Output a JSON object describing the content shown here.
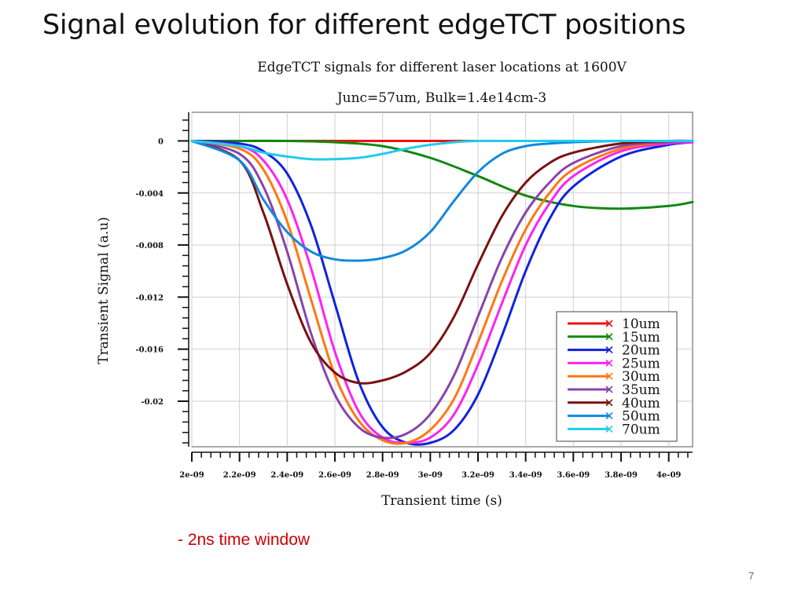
{
  "slide": {
    "title": "Signal evolution for different edgeTCT positions",
    "note": "- 2ns time window",
    "page_number": "7"
  },
  "chart_data": {
    "type": "line",
    "title": "EdgeTCT signals for different laser locations at 1600V",
    "subtitle": "Junc=57um, Bulk=1.4e14cm-3",
    "xlabel": "Transient time (s)",
    "ylabel": "Transient Signal (a.u)",
    "xlim": [
      2e-09,
      4.1e-09
    ],
    "ylim": [
      -0.0235,
      0.0022
    ],
    "x_ticks": [
      2e-09,
      2.2e-09,
      2.4e-09,
      2.6e-09,
      2.8e-09,
      3e-09,
      3.2e-09,
      3.4e-09,
      3.6e-09,
      3.8e-09,
      4e-09
    ],
    "x_tick_labels": [
      "2e-09",
      "2.2e-09",
      "2.4e-09",
      "2.6e-09",
      "2.8e-09",
      "3e-09",
      "3.2e-09",
      "3.4e-09",
      "3.6e-09",
      "3.8e-09",
      "4e-09"
    ],
    "y_ticks": [
      0,
      -0.004,
      -0.008,
      -0.012,
      -0.016,
      -0.02
    ],
    "y_tick_labels": [
      "0",
      "-0.004",
      "-0.008",
      "-0.012",
      "-0.016",
      "-0.02"
    ],
    "grid": true,
    "legend_position": "bottom-right",
    "series": [
      {
        "name": "10um",
        "color": "#ee1111",
        "x": [
          2e-09,
          3e-09,
          3.45e-09
        ],
        "y": [
          0,
          0,
          0
        ]
      },
      {
        "name": "15um",
        "color": "#118811",
        "x": [
          2e-09,
          2.2e-09,
          2.4e-09,
          2.6e-09,
          2.8e-09,
          3e-09,
          3.2e-09,
          3.4e-09,
          3.6e-09,
          3.8e-09,
          4e-09,
          4.1e-09
        ],
        "y": [
          0,
          0,
          0,
          -0.0001,
          -0.0004,
          -0.0013,
          -0.0027,
          -0.0042,
          -0.005,
          -0.0052,
          -0.005,
          -0.0047
        ]
      },
      {
        "name": "20um",
        "color": "#1122dd",
        "x": [
          2e-09,
          2.2e-09,
          2.3e-09,
          2.4e-09,
          2.5e-09,
          2.6e-09,
          2.7e-09,
          2.8e-09,
          2.9e-09,
          3e-09,
          3.1e-09,
          3.2e-09,
          3.3e-09,
          3.4e-09,
          3.5e-09,
          3.6e-09,
          3.8e-09,
          4e-09,
          4.1e-09
        ],
        "y": [
          0,
          -0.0002,
          -0.0008,
          -0.0025,
          -0.0065,
          -0.0125,
          -0.0185,
          -0.022,
          -0.0232,
          -0.0232,
          -0.0222,
          -0.0195,
          -0.015,
          -0.01,
          -0.006,
          -0.0035,
          -0.0012,
          -0.0003,
          -0.0001
        ]
      },
      {
        "name": "25um",
        "color": "#ff22ee",
        "x": [
          2e-09,
          2.2e-09,
          2.3e-09,
          2.4e-09,
          2.5e-09,
          2.6e-09,
          2.7e-09,
          2.8e-09,
          2.9e-09,
          3e-09,
          3.1e-09,
          3.2e-09,
          3.3e-09,
          3.4e-09,
          3.5e-09,
          3.6e-09,
          3.8e-09,
          4e-09,
          4.1e-09
        ],
        "y": [
          0,
          -0.0004,
          -0.0015,
          -0.0045,
          -0.0098,
          -0.0162,
          -0.0208,
          -0.0228,
          -0.0232,
          -0.0228,
          -0.021,
          -0.0172,
          -0.0125,
          -0.008,
          -0.0048,
          -0.0027,
          -0.0008,
          -0.0002,
          -0.0001
        ]
      },
      {
        "name": "30um",
        "color": "#ff7711",
        "x": [
          2e-09,
          2.2e-09,
          2.3e-09,
          2.4e-09,
          2.5e-09,
          2.6e-09,
          2.7e-09,
          2.8e-09,
          2.9e-09,
          3e-09,
          3.1e-09,
          3.2e-09,
          3.3e-09,
          3.4e-09,
          3.5e-09,
          3.6e-09,
          3.8e-09,
          4e-09,
          4.1e-09
        ],
        "y": [
          0,
          -0.0006,
          -0.0022,
          -0.0062,
          -0.0122,
          -0.018,
          -0.0215,
          -0.023,
          -0.0232,
          -0.0222,
          -0.0198,
          -0.0155,
          -0.0108,
          -0.0068,
          -0.004,
          -0.0022,
          -0.0006,
          -0.0001,
          0
        ]
      },
      {
        "name": "35um",
        "color": "#8844aa",
        "x": [
          2e-09,
          2.2e-09,
          2.3e-09,
          2.4e-09,
          2.5e-09,
          2.6e-09,
          2.7e-09,
          2.8e-09,
          2.9e-09,
          3e-09,
          3.1e-09,
          3.2e-09,
          3.3e-09,
          3.4e-09,
          3.5e-09,
          3.6e-09,
          3.8e-09,
          4e-09,
          4.1e-09
        ],
        "y": [
          0,
          -0.001,
          -0.0035,
          -0.0085,
          -0.0148,
          -0.0195,
          -0.022,
          -0.0228,
          -0.0225,
          -0.021,
          -0.018,
          -0.0135,
          -0.009,
          -0.0055,
          -0.0032,
          -0.0017,
          -0.0004,
          -0.0001,
          0
        ]
      },
      {
        "name": "40um",
        "color": "#7a1111",
        "x": [
          2e-09,
          2.2e-09,
          2.3e-09,
          2.4e-09,
          2.5e-09,
          2.6e-09,
          2.7e-09,
          2.8e-09,
          2.9e-09,
          3e-09,
          3.1e-09,
          3.2e-09,
          3.3e-09,
          3.4e-09,
          3.5e-09,
          3.6e-09,
          3.8e-09,
          4e-09,
          4.1e-09
        ],
        "y": [
          0,
          -0.0015,
          -0.0055,
          -0.011,
          -0.0155,
          -0.0178,
          -0.0186,
          -0.0184,
          -0.0177,
          -0.0163,
          -0.0135,
          -0.0095,
          -0.0058,
          -0.0032,
          -0.0017,
          -0.0009,
          -0.0002,
          0,
          0
        ]
      },
      {
        "name": "50um",
        "color": "#1188dd",
        "x": [
          2e-09,
          2.2e-09,
          2.3e-09,
          2.4e-09,
          2.5e-09,
          2.6e-09,
          2.7e-09,
          2.8e-09,
          2.9e-09,
          3e-09,
          3.1e-09,
          3.2e-09,
          3.3e-09,
          3.4e-09,
          3.5e-09,
          3.6e-09,
          3.8e-09,
          4e-09,
          4.1e-09
        ],
        "y": [
          0,
          -0.0015,
          -0.0045,
          -0.007,
          -0.0085,
          -0.0091,
          -0.0092,
          -0.009,
          -0.0084,
          -0.007,
          -0.0046,
          -0.0024,
          -0.001,
          -0.0004,
          -0.0002,
          -0.0001,
          0,
          0,
          0
        ]
      },
      {
        "name": "70um",
        "color": "#22ccee",
        "x": [
          2e-09,
          2.2e-09,
          2.3e-09,
          2.4e-09,
          2.5e-09,
          2.6e-09,
          2.7e-09,
          2.8e-09,
          2.9e-09,
          3e-09,
          3.1e-09,
          3.2e-09,
          3.3e-09,
          3.4e-09,
          3.6e-09,
          3.8e-09,
          4e-09,
          4.1e-09
        ],
        "y": [
          0,
          -0.0004,
          -0.0009,
          -0.0012,
          -0.0014,
          -0.0014,
          -0.0013,
          -0.001,
          -0.0006,
          -0.0003,
          -0.0001,
          0,
          0,
          0,
          0,
          0,
          0,
          0
        ]
      }
    ]
  }
}
